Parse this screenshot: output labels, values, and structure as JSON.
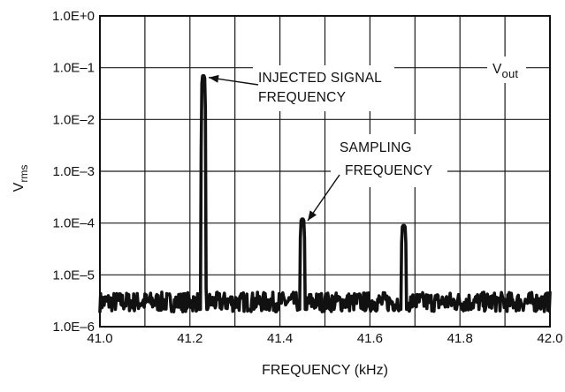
{
  "chart_data": {
    "type": "line",
    "title": "",
    "xlabel": "FREQUENCY (kHz)",
    "ylabel": {
      "main": "V",
      "sub": "rms"
    },
    "series_label": {
      "main": "V",
      "sub": "out"
    },
    "x_scale": "linear",
    "y_scale": "log",
    "xlim": [
      41.0,
      42.0
    ],
    "ylim": [
      1e-06,
      1.0
    ],
    "grid": true,
    "x_ticks": [
      41.0,
      41.1,
      41.2,
      41.3,
      41.4,
      41.5,
      41.6,
      41.7,
      41.8,
      41.9,
      42.0
    ],
    "x_tick_labels": [
      "41.0",
      "",
      "41.2",
      "",
      "41.4",
      "",
      "41.6",
      "",
      "41.8",
      "",
      "42.0"
    ],
    "y_ticks": [
      1.0,
      0.1,
      0.01,
      0.001,
      0.0001,
      1e-05,
      1e-06
    ],
    "y_tick_labels": [
      "1.0E+0",
      "1.0E–1",
      "1.0E–2",
      "1.0E–3",
      "1.0E–4",
      "1.0E–5",
      "1.0E–6"
    ],
    "noise_floor": 3e-06,
    "peaks": [
      {
        "frequency": 41.23,
        "value": 0.07
      },
      {
        "frequency": 41.45,
        "value": 0.00012
      },
      {
        "frequency": 41.675,
        "value": 9e-05
      }
    ],
    "annotations": [
      {
        "lines": [
          "INJECTED SIGNAL",
          "FREQUENCY"
        ],
        "points_to_frequency": 41.23
      },
      {
        "lines": [
          "SAMPLING",
          "FREQUENCY"
        ],
        "points_to_frequency": 41.45
      }
    ]
  }
}
